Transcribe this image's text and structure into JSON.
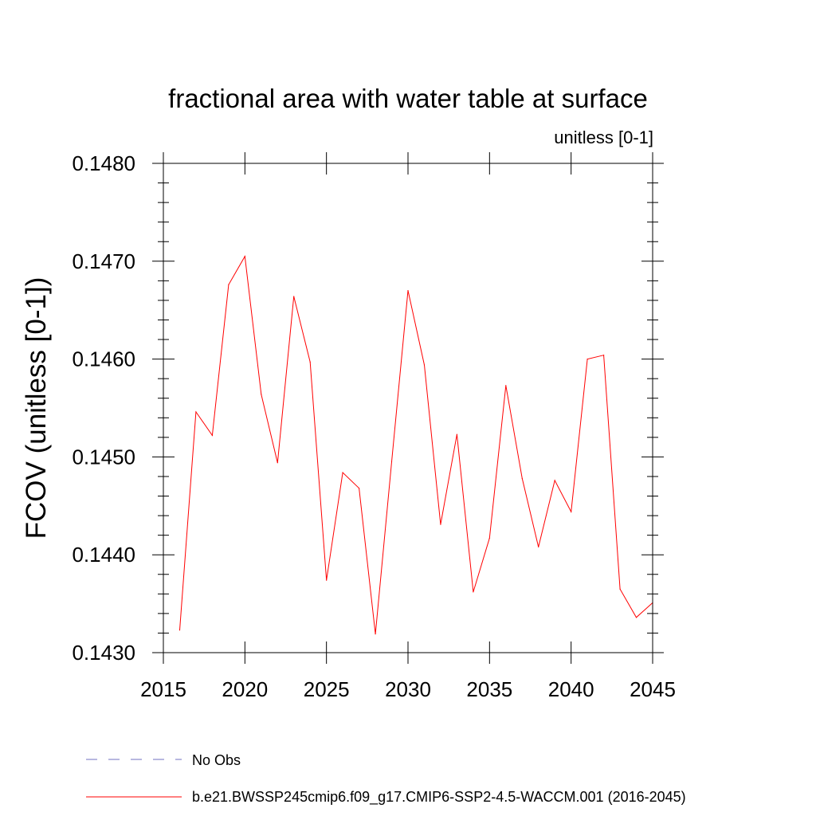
{
  "chart_data": {
    "type": "line",
    "title": "fractional area with water table at surface",
    "units_label": "unitless [0-1]",
    "xlabel": "",
    "ylabel": "FCOV  (unitless [0-1])",
    "xlim": [
      2015,
      2045
    ],
    "ylim": [
      0.143,
      0.148
    ],
    "x_ticks": [
      2015,
      2020,
      2025,
      2030,
      2035,
      2040,
      2045
    ],
    "x_tick_labels": [
      "2015",
      "2020",
      "2025",
      "2030",
      "2035",
      "2040",
      "2045"
    ],
    "y_ticks": [
      0.143,
      0.144,
      0.145,
      0.146,
      0.147,
      0.148
    ],
    "y_tick_labels": [
      "0.1430",
      "0.1440",
      "0.1450",
      "0.1460",
      "0.1470",
      "0.1480"
    ],
    "grid": false,
    "series": [
      {
        "name": "b.e21.BWSSP245cmip6.f09_g17.CMIP6-SSP2-4.5-WACCM.001 (2016-2045)",
        "color": "#ff0000",
        "style": "solid",
        "x": [
          2016,
          2017,
          2018,
          2019,
          2020,
          2021,
          2022,
          2023,
          2024,
          2025,
          2026,
          2027,
          2028,
          2029,
          2030,
          2031,
          2032,
          2033,
          2034,
          2035,
          2036,
          2037,
          2038,
          2039,
          2040,
          2041,
          2042,
          2043,
          2044,
          2045
        ],
        "values": [
          0.14323,
          0.14546,
          0.14522,
          0.14676,
          0.14705,
          0.14564,
          0.14494,
          0.14664,
          0.14597,
          0.14374,
          0.14484,
          0.14468,
          0.14319,
          0.14495,
          0.1467,
          0.14594,
          0.14431,
          0.14523,
          0.14362,
          0.14417,
          0.14573,
          0.14478,
          0.14408,
          0.14476,
          0.14444,
          0.146,
          0.14604,
          0.14365,
          0.14336,
          0.14351
        ]
      }
    ],
    "legend": {
      "placement": "bottom",
      "entries": [
        {
          "label": "No Obs",
          "color": "#7070c0",
          "style": "dashed"
        },
        {
          "label": "b.e21.BWSSP245cmip6.f09_g17.CMIP6-SSP2-4.5-WACCM.001 (2016-2045)",
          "color": "#ff0000",
          "style": "solid"
        }
      ]
    }
  }
}
